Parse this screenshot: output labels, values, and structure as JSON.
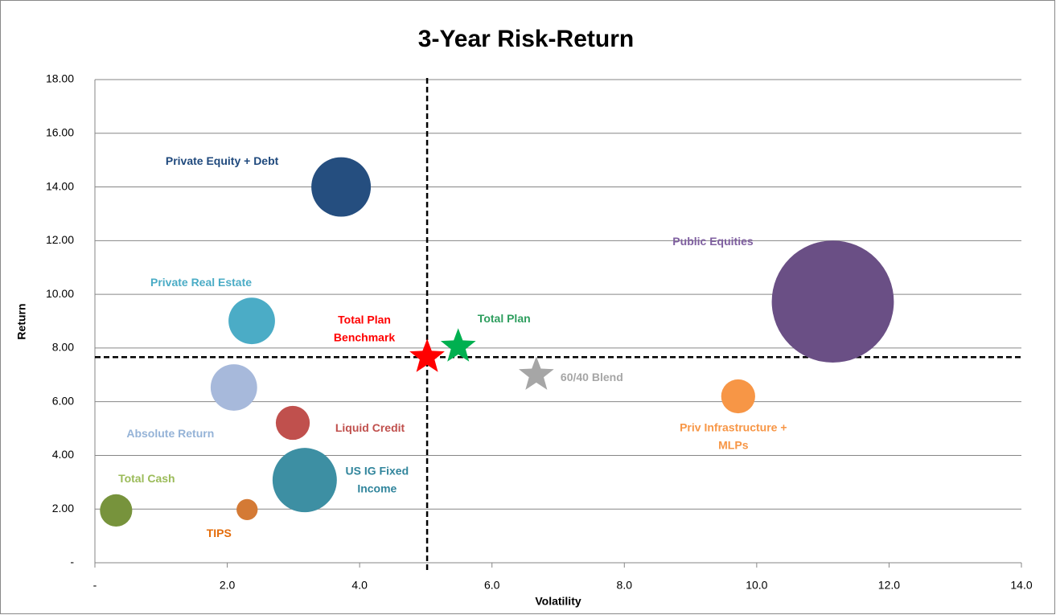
{
  "chart_data": {
    "type": "bubble",
    "title": "3-Year Risk-Return",
    "x_label": "Volatility",
    "y_label": "Return",
    "xlim": [
      0,
      14
    ],
    "ylim": [
      0,
      18
    ],
    "xticks": [
      {
        "value": 0,
        "label": "-"
      },
      {
        "value": 2,
        "label": "2.0"
      },
      {
        "value": 4,
        "label": "4.0"
      },
      {
        "value": 6,
        "label": "6.0"
      },
      {
        "value": 8,
        "label": "8.0"
      },
      {
        "value": 10,
        "label": "10.0"
      },
      {
        "value": 12,
        "label": "12.0"
      },
      {
        "value": 14,
        "label": "14.0"
      }
    ],
    "yticks": [
      {
        "value": 0,
        "label": "-"
      },
      {
        "value": 2,
        "label": "2.00"
      },
      {
        "value": 4,
        "label": "4.00"
      },
      {
        "value": 6,
        "label": "6.00"
      },
      {
        "value": 8,
        "label": "8.00"
      },
      {
        "value": 10,
        "label": "10.00"
      },
      {
        "value": 12,
        "label": "12.00"
      },
      {
        "value": 14,
        "label": "14.00"
      },
      {
        "value": 16,
        "label": "16.00"
      },
      {
        "value": 18,
        "label": "18.00"
      }
    ],
    "grid": true,
    "reference_lines": {
      "x": 5.02,
      "y": 7.66
    },
    "series": [
      {
        "name": "Private Equity + Debt",
        "marker": "circle",
        "color": "#254e7f",
        "label_color": "#1f497d",
        "x": 3.72,
        "y": 14.0,
        "size": 9.5
      },
      {
        "name": "Public Equities",
        "marker": "circle",
        "color": "#6a4f85",
        "label_color": "#7f5fa0",
        "x": 11.15,
        "y": 9.73,
        "size": 40
      },
      {
        "name": "Private Real Estate",
        "marker": "circle",
        "color": "#4bacc6",
        "label_color": "#4bacc6",
        "x": 2.37,
        "y": 9.01,
        "size": 5.8
      },
      {
        "name": "Absolute Return",
        "marker": "circle",
        "color": "#a7b9db",
        "label_color": "#95b3d7",
        "x": 2.1,
        "y": 6.53,
        "size": 5.8
      },
      {
        "name": "Liquid Credit",
        "marker": "circle",
        "color": "#c0504d",
        "label_color": "#c0504d",
        "x": 2.99,
        "y": 5.21,
        "size": 3.1
      },
      {
        "name": "US IG Fixed Income",
        "marker": "circle",
        "color": "#3d8fa3",
        "label_color": "#31859c",
        "x": 3.17,
        "y": 3.08,
        "size": 11.1
      },
      {
        "name": "Total Cash",
        "marker": "circle",
        "color": "#77933c",
        "label_color": "#9bbb59",
        "x": 0.32,
        "y": 1.95,
        "size": 2.8
      },
      {
        "name": "TIPS",
        "marker": "circle",
        "color": "#d47a35",
        "label_color": "#e46c0a",
        "x": 2.3,
        "y": 1.98,
        "size": 1.2
      },
      {
        "name": "Priv Infrastructure + MLPs",
        "marker": "circle",
        "color": "#f79646",
        "label_color": "#f79646",
        "x": 9.72,
        "y": 6.2,
        "size": 3.1
      },
      {
        "name": "Total Plan Benchmark",
        "marker": "star",
        "color": "#ff0000",
        "label_color": "#ff0000",
        "x": 5.02,
        "y": 7.66
      },
      {
        "name": "Total Plan",
        "marker": "star",
        "color": "#00b050",
        "label_color": "#2e9e5e",
        "x": 5.49,
        "y": 8.05
      },
      {
        "name": "60/40 Blend",
        "marker": "star",
        "color": "#a6a6a6",
        "label_color": "#a6a6a6",
        "x": 6.67,
        "y": 7.0
      }
    ]
  }
}
